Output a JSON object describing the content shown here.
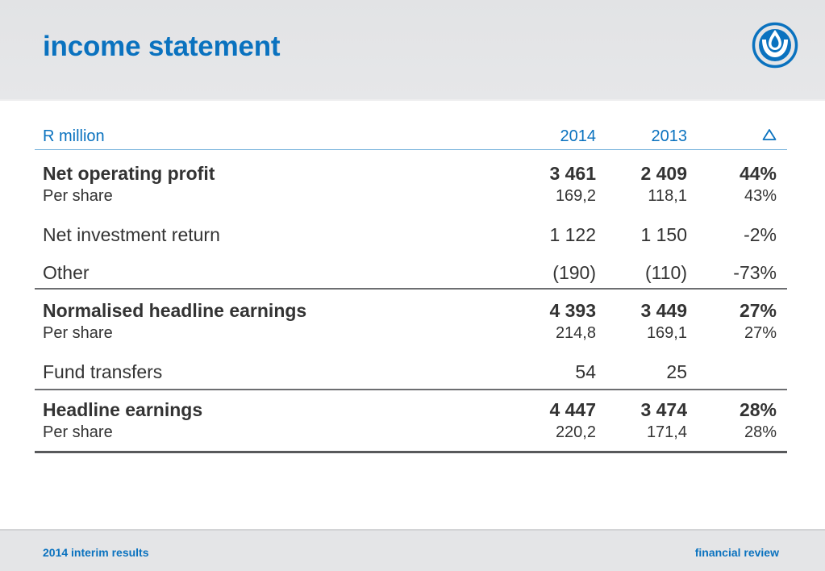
{
  "header": {
    "title": "income statement",
    "logo_icon": "sanlam-logo-icon"
  },
  "table": {
    "columns": {
      "label": "R million",
      "y2014": "2014",
      "y2013": "2013",
      "delta_icon": "delta-triangle-icon"
    },
    "rows": [
      {
        "label": "Net operating profit",
        "y2014": "3 461",
        "y2013": "2 409",
        "delta": "44%"
      },
      {
        "label": "Per share",
        "y2014": "169,2",
        "y2013": "118,1",
        "delta": "43%"
      },
      {
        "label": "Net investment return",
        "y2014": "1 122",
        "y2013": "1 150",
        "delta": "-2%"
      },
      {
        "label": "Other",
        "y2014": "(190)",
        "y2013": "(110)",
        "delta": "-73%"
      },
      {
        "label": "Normalised headline earnings",
        "y2014": "4 393",
        "y2013": "3 449",
        "delta": "27%"
      },
      {
        "label": "Per share",
        "y2014": "214,8",
        "y2013": "169,1",
        "delta": "27%"
      },
      {
        "label": "Fund transfers",
        "y2014": "54",
        "y2013": "25",
        "delta": ""
      },
      {
        "label": "Headline earnings",
        "y2014": "4 447",
        "y2013": "3 474",
        "delta": "28%"
      },
      {
        "label": "Per share",
        "y2014": "220,2",
        "y2013": "171,4",
        "delta": "28%"
      }
    ]
  },
  "footer": {
    "left": "2014 interim results",
    "right": "financial review"
  },
  "colors": {
    "accent": "#0a72bf",
    "text": "#333333",
    "header_bg": "#e4e5e7"
  }
}
